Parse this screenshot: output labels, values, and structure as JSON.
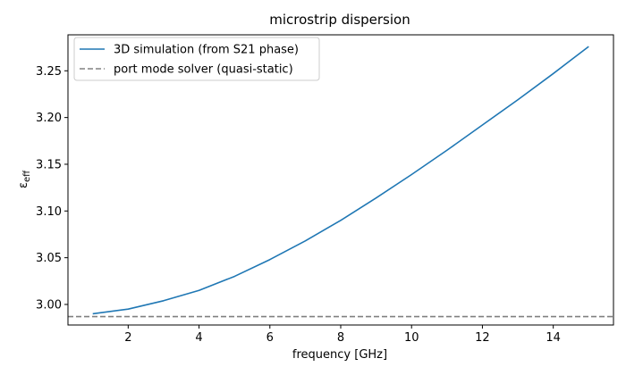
{
  "chart_data": {
    "type": "line",
    "title": "microstrip dispersion",
    "xlabel": "frequency [GHz]",
    "ylabel": "ε",
    "ylabel_subscript": "eff",
    "xlim": [
      0.3,
      15.7
    ],
    "ylim": [
      2.978,
      3.2885
    ],
    "xticks": [
      2,
      4,
      6,
      8,
      10,
      12,
      14
    ],
    "yticks": [
      3.0,
      3.05,
      3.1,
      3.15,
      3.2,
      3.25
    ],
    "ytick_labels": [
      "3.00",
      "3.05",
      "3.10",
      "3.15",
      "3.20",
      "3.25"
    ],
    "legend_placement": "upper-left",
    "grid": false,
    "series": [
      {
        "name": "3D simulation (from S21 phase)",
        "style": "solid",
        "color": "#1f77b4",
        "x": [
          1,
          2,
          3,
          4,
          5,
          6,
          7,
          8,
          9,
          10,
          11,
          12,
          13,
          14,
          15
        ],
        "y": [
          2.99,
          2.995,
          3.004,
          3.015,
          3.03,
          3.048,
          3.068,
          3.09,
          3.114,
          3.139,
          3.165,
          3.192,
          3.219,
          3.247,
          3.276
        ]
      },
      {
        "name": "port mode solver (quasi-static)",
        "style": "dashed",
        "color": "#808080",
        "y_constant": 2.987
      }
    ]
  }
}
